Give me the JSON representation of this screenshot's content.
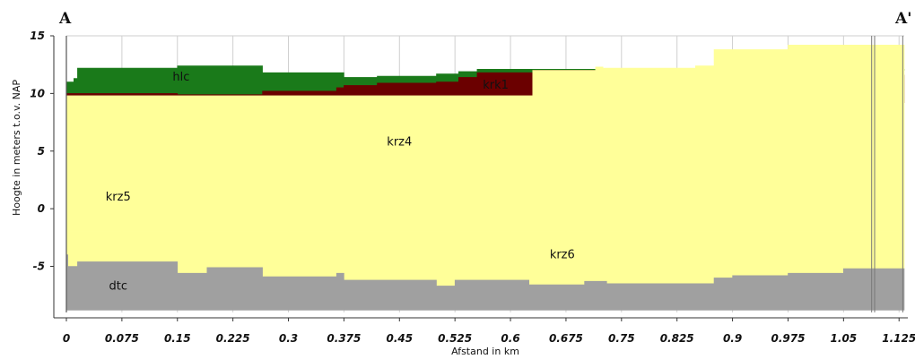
{
  "chart_data": {
    "type": "area",
    "title": "",
    "xlabel": "Afstand in km",
    "ylabel": "Hoogte in meters t.o.v. NAP",
    "xlim": [
      0,
      1.132
    ],
    "ylim": [
      -9,
      15
    ],
    "x_ticks": [
      "0",
      "0.075",
      "0.15",
      "0.225",
      "0.3",
      "0.375",
      "0.45",
      "0.525",
      "0.6",
      "0.675",
      "0.75",
      "0.825",
      "0.9",
      "0.975",
      "1.05",
      "1.125"
    ],
    "y_ticks": [
      "15",
      "10",
      "5",
      "0",
      "-5"
    ],
    "section_markers": {
      "start": "A",
      "end": "A'"
    },
    "vertical_lines_km": [
      1.088,
      1.092,
      1.13
    ],
    "colors": {
      "hlc": "#1a7a1a",
      "krk1": "#6b0000",
      "krz": "#ffff99",
      "dtc": "#a0a0a0",
      "grid": "#cfcfcf",
      "axis": "#333333"
    },
    "layers": [
      {
        "name": "hlc",
        "color_key": "hlc",
        "label_at": [
          0.155,
          11.1
        ],
        "x": [
          0,
          0.01,
          0.015,
          0.125,
          0.15,
          0.245,
          0.265,
          0.365,
          0.375,
          0.42,
          0.5,
          0.53,
          0.555,
          0.615,
          0.63
        ],
        "top": [
          11.0,
          11.3,
          12.2,
          12.2,
          12.4,
          12.4,
          11.8,
          11.8,
          11.4,
          11.5,
          11.7,
          11.9,
          12.1,
          12.1,
          12.1
        ],
        "bottom": [
          10.0,
          10.0,
          10.0,
          10.0,
          9.9,
          9.9,
          10.2,
          10.5,
          10.7,
          10.9,
          11.0,
          11.4,
          11.8,
          11.8,
          12.0
        ]
      },
      {
        "name": "krk1",
        "color_key": "krk1",
        "label_at": [
          0.58,
          10.4
        ],
        "x": [
          0,
          0.01,
          0.125,
          0.15,
          0.245,
          0.265,
          0.365,
          0.375,
          0.42,
          0.5,
          0.53,
          0.555,
          0.615,
          0.63,
          0.715,
          0.725,
          0.85,
          0.875,
          0.9,
          0.975,
          1.05,
          1.1,
          1.132
        ],
        "top": [
          10.0,
          10.0,
          10.0,
          9.9,
          9.9,
          10.2,
          10.5,
          10.7,
          10.9,
          11.0,
          11.4,
          11.8,
          11.8,
          12.0,
          11.9,
          11.8,
          11.8,
          11.9,
          11.8,
          11.8,
          11.7,
          11.6,
          11.6
        ],
        "bottom": [
          9.8,
          9.8,
          9.7,
          9.6,
          9.7,
          9.6,
          9.6,
          9.5,
          9.5,
          9.5,
          9.5,
          9.4,
          9.4,
          9.4,
          9.3,
          9.3,
          9.3,
          9.3,
          9.2,
          9.2,
          9.2,
          9.2,
          9.2
        ]
      },
      {
        "name": "krz4",
        "color_key": "krz",
        "label_at": [
          0.45,
          5.5
        ],
        "x": [
          0,
          0.63,
          0.715,
          0.725,
          0.85,
          0.875,
          0.9,
          0.975,
          1.05,
          1.1,
          1.132
        ],
        "top": [
          9.8,
          12.0,
          12.3,
          12.2,
          12.4,
          13.8,
          13.8,
          14.2,
          14.2,
          14.2,
          14.2
        ],
        "bottom": [
          3.0,
          3.0,
          3.0,
          3.0,
          3.0,
          3.0,
          3.0,
          3.0,
          3.0,
          3.0,
          3.0
        ]
      },
      {
        "name": "krz5",
        "color_key": "krz",
        "label_at": [
          0.07,
          0.7
        ],
        "x": [
          0,
          0.5,
          1.0,
          1.132
        ],
        "top": [
          3.0,
          3.0,
          3.0,
          3.0
        ],
        "bottom": [
          -2.0,
          -2.0,
          -2.0,
          -2.0
        ]
      },
      {
        "name": "krz6",
        "color_key": "krz",
        "label_at": [
          0.67,
          -4.3
        ],
        "x": [
          0,
          0.002,
          0.015,
          0.125,
          0.15,
          0.19,
          0.245,
          0.265,
          0.365,
          0.375,
          0.5,
          0.525,
          0.6,
          0.625,
          0.7,
          0.73,
          0.875,
          0.9,
          0.975,
          1.05,
          1.132
        ],
        "top": [
          -2.0,
          -2.0,
          -2.0,
          -2.0,
          -2.0,
          -2.0,
          -2.0,
          -2.0,
          -2.0,
          -2.0,
          -2.0,
          -2.0,
          -2.0,
          -2.0,
          -2.0,
          -2.0,
          -2.0,
          -2.0,
          -2.0,
          -2.0,
          -2.0
        ],
        "bottom": [
          -4.0,
          -5.0,
          -4.6,
          -4.6,
          -5.6,
          -5.1,
          -5.1,
          -5.9,
          -5.6,
          -6.2,
          -6.7,
          -6.2,
          -6.2,
          -6.6,
          -6.3,
          -6.5,
          -6.0,
          -5.8,
          -5.6,
          -5.2,
          -5.2
        ]
      },
      {
        "name": "dtc",
        "color_key": "dtc",
        "label_at": [
          0.07,
          -7.0
        ],
        "x": [
          0,
          0.002,
          0.015,
          0.125,
          0.15,
          0.19,
          0.245,
          0.265,
          0.365,
          0.375,
          0.5,
          0.525,
          0.6,
          0.625,
          0.7,
          0.73,
          0.875,
          0.9,
          0.975,
          1.05,
          1.132
        ],
        "top": [
          -4.0,
          -5.0,
          -4.6,
          -4.6,
          -5.6,
          -5.1,
          -5.1,
          -5.9,
          -5.6,
          -6.2,
          -6.7,
          -6.2,
          -6.2,
          -6.6,
          -6.3,
          -6.5,
          -6.0,
          -5.8,
          -5.6,
          -5.2,
          -5.2
        ],
        "bottom": [
          -8.8,
          -8.8,
          -8.8,
          -8.8,
          -8.8,
          -8.8,
          -8.8,
          -8.8,
          -8.8,
          -8.8,
          -8.8,
          -8.8,
          -8.8,
          -8.8,
          -8.8,
          -8.8,
          -8.8,
          -8.8,
          -8.8,
          -8.8,
          -8.8
        ]
      }
    ]
  }
}
